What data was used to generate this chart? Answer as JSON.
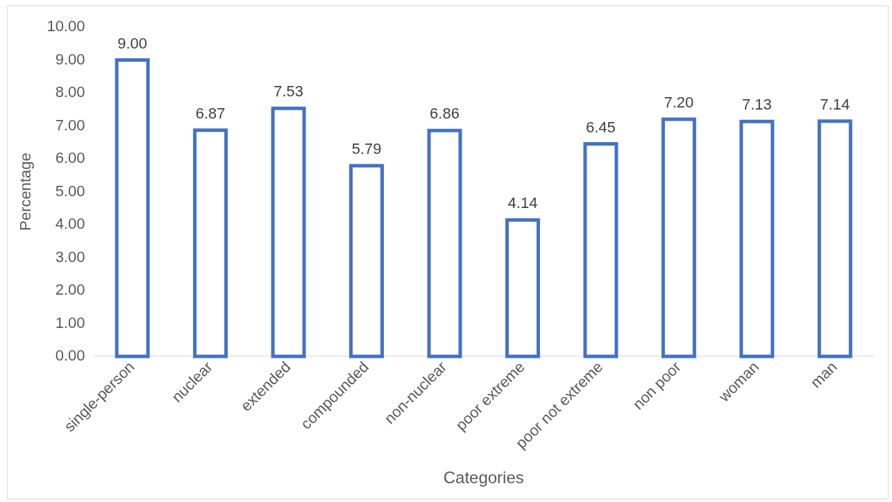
{
  "chart_data": {
    "type": "bar",
    "xlabel": "Categories",
    "ylabel": "Percentage",
    "categories": [
      "single-person",
      "nuclear",
      "extended",
      "compounded",
      "non-nuclear",
      "poor extreme",
      "poor not extreme",
      "non poor",
      "woman",
      "man"
    ],
    "values": [
      9.0,
      6.87,
      7.53,
      5.79,
      6.86,
      4.14,
      6.45,
      7.2,
      7.13,
      7.14
    ],
    "value_labels": [
      "9.00",
      "6.87",
      "7.53",
      "5.79",
      "6.86",
      "4.14",
      "6.45",
      "7.20",
      "7.13",
      "7.14"
    ],
    "color": "#4472c4",
    "ylim": [
      0,
      10
    ],
    "yticks": [
      {
        "value": 0,
        "label": "0.00"
      },
      {
        "value": 1,
        "label": "1.00"
      },
      {
        "value": 2,
        "label": "2.00"
      },
      {
        "value": 3,
        "label": "3.00"
      },
      {
        "value": 4,
        "label": "4.00"
      },
      {
        "value": 5,
        "label": "5.00"
      },
      {
        "value": 6,
        "label": "6.00"
      },
      {
        "value": 7,
        "label": "7.00"
      },
      {
        "value": 8,
        "label": "8.00"
      },
      {
        "value": 9,
        "label": "9.00"
      },
      {
        "value": 10,
        "label": "10.00"
      }
    ],
    "grid": false,
    "legend": false
  }
}
